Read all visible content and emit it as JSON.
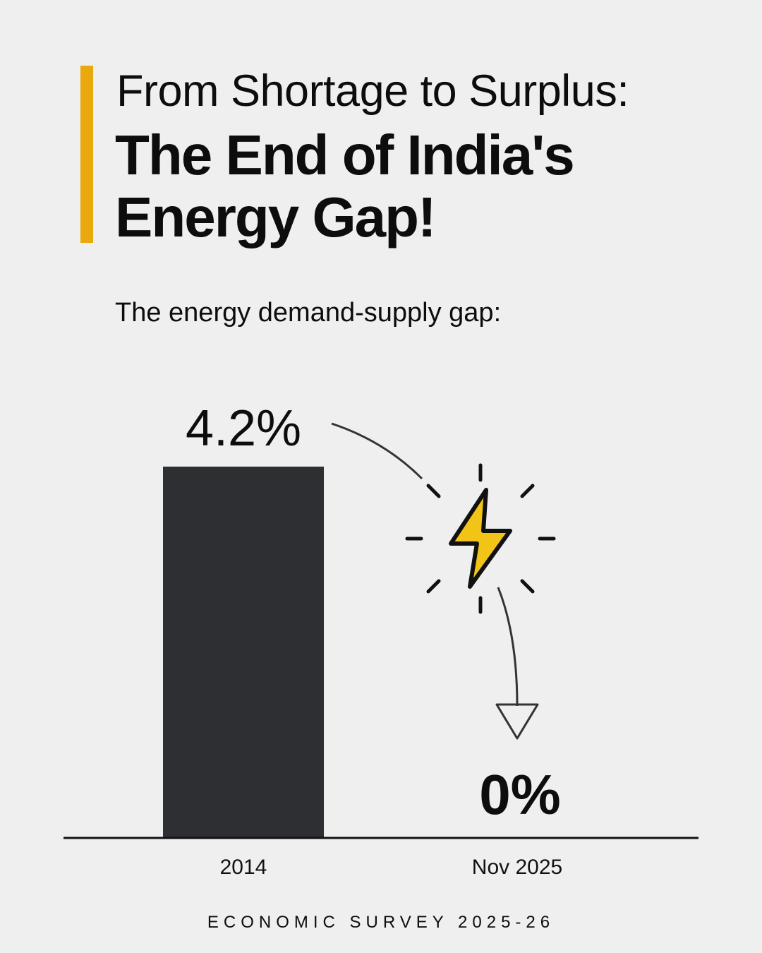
{
  "header": {
    "title_line1": "From Shortage to Surplus:",
    "title_main": "The End of India's Energy Gap!",
    "accent_color": "#e9a80c"
  },
  "subtitle": "The energy demand-supply gap:",
  "chart_data": {
    "type": "bar",
    "categories": [
      "2014",
      "Nov 2025"
    ],
    "values": [
      4.2,
      0
    ],
    "value_labels": [
      "4.2%",
      "0%"
    ],
    "ylim": [
      0,
      4.2
    ],
    "bar_color": "#2e2f33",
    "grid": false,
    "annotation_icon": "lightning-bolt-icon",
    "icon_color": "#f2c418"
  },
  "footer": "ECONOMIC SURVEY 2025-26"
}
